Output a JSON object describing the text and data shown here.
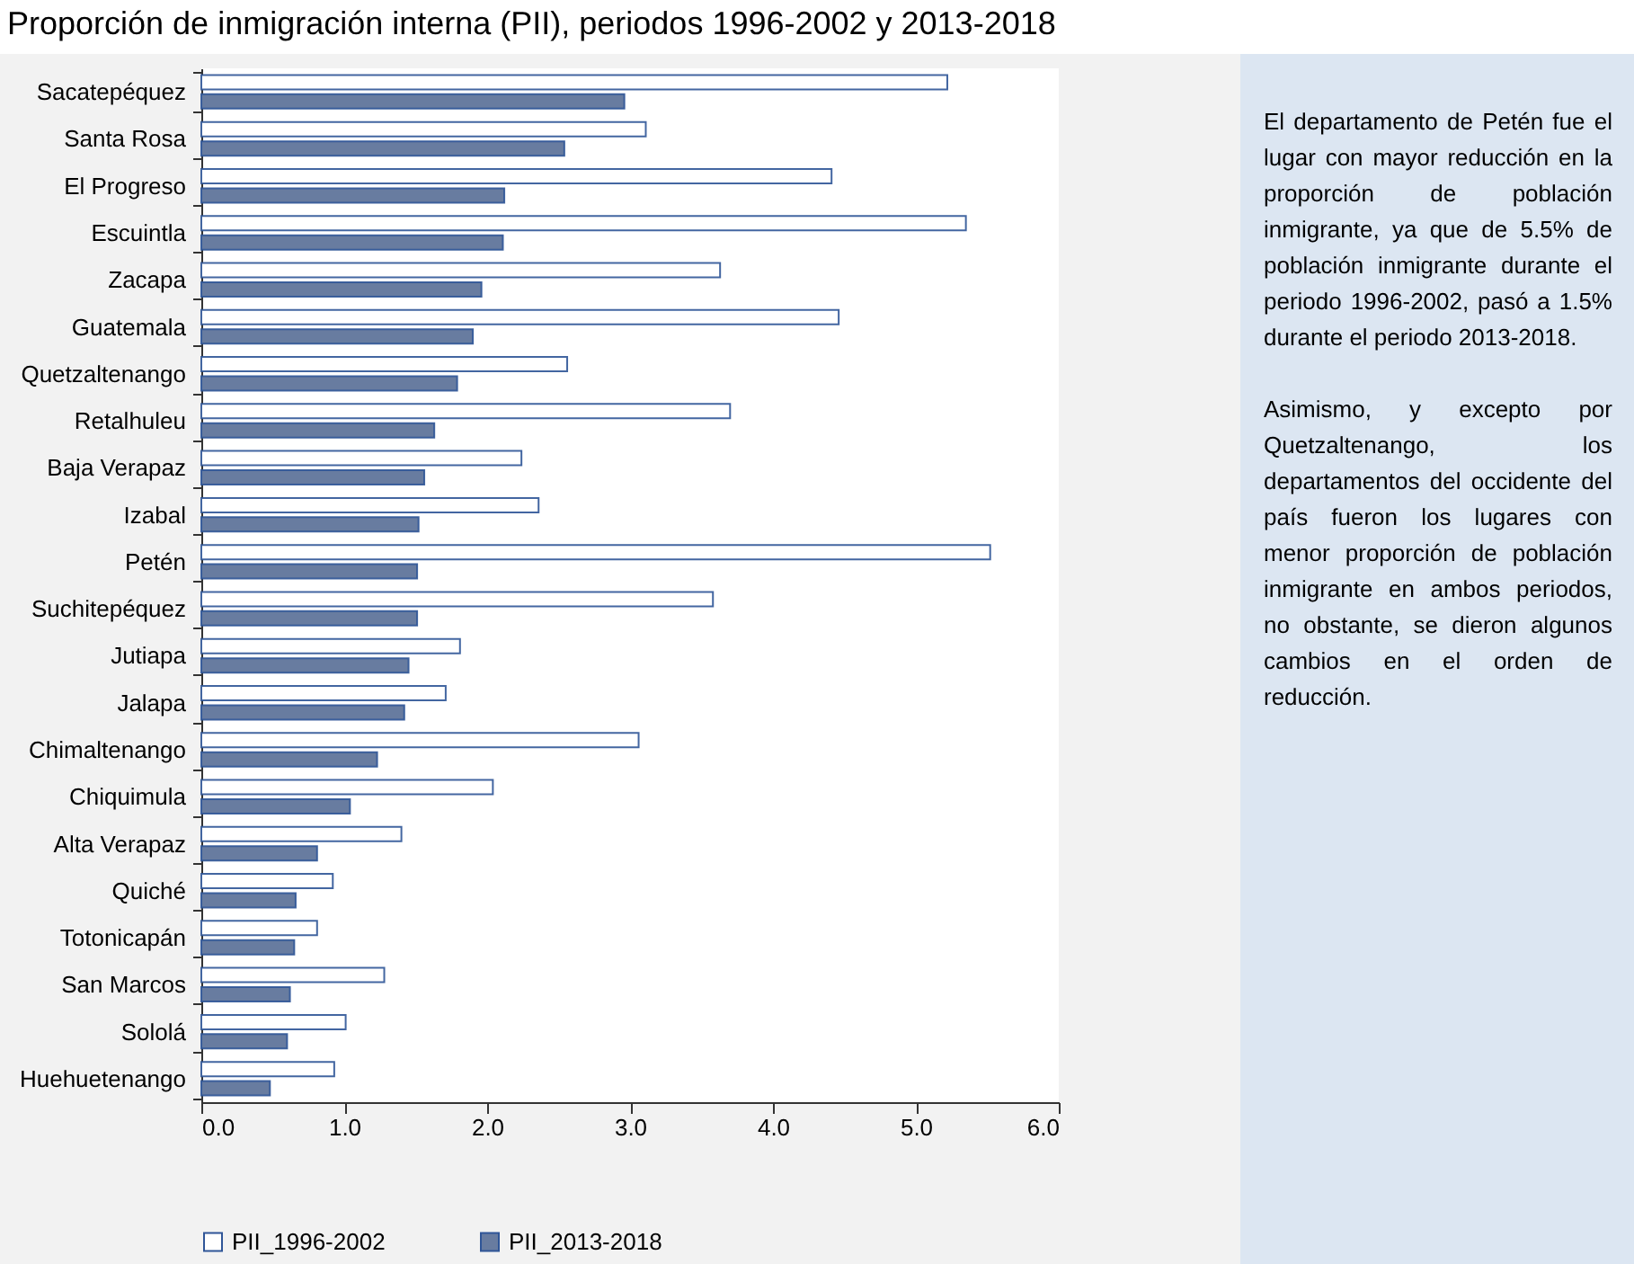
{
  "chart_data": {
    "type": "bar",
    "orientation": "horizontal",
    "title": "Proporción de inmigración interna (PII), periodos 1996-2002 y 2013-2018",
    "categories": [
      "Sacatepéquez",
      "Santa Rosa",
      "El Progreso",
      "Escuintla",
      "Zacapa",
      "Guatemala",
      "Quetzaltenango",
      "Retalhuleu",
      "Baja Verapaz",
      "Izabal",
      "Petén",
      "Suchitepéquez",
      "Jutiapa",
      "Jalapa",
      "Chimaltenango",
      "Chiquimula",
      "Alta Verapaz",
      "Quiché",
      "Totonicapán",
      "San Marcos",
      "Sololá",
      "Huehuetenango"
    ],
    "series": [
      {
        "name": "PII_1996-2002",
        "color": "#ffffff",
        "values": [
          5.22,
          3.11,
          4.41,
          5.35,
          3.63,
          4.46,
          2.56,
          3.7,
          2.24,
          2.36,
          5.52,
          3.58,
          1.81,
          1.71,
          3.06,
          2.04,
          1.4,
          0.92,
          0.81,
          1.28,
          1.01,
          0.93
        ]
      },
      {
        "name": "PII_2013-2018",
        "color": "#687ca0",
        "values": [
          2.96,
          2.54,
          2.12,
          2.11,
          1.96,
          1.9,
          1.79,
          1.63,
          1.56,
          1.52,
          1.51,
          1.51,
          1.45,
          1.42,
          1.23,
          1.04,
          0.81,
          0.66,
          0.65,
          0.62,
          0.6,
          0.48
        ]
      }
    ],
    "xlim": [
      0,
      6
    ],
    "xticks": [
      {
        "value": 0,
        "label": "0.0"
      },
      {
        "value": 1,
        "label": "1.0"
      },
      {
        "value": 2,
        "label": "2.0"
      },
      {
        "value": 3,
        "label": "3.0"
      },
      {
        "value": 4,
        "label": "4.0"
      },
      {
        "value": 5,
        "label": "5.0"
      },
      {
        "value": 6,
        "label": "6.0"
      }
    ],
    "grid": false,
    "legend": "bottom",
    "annotations": [
      "El departamento de Petén fue el lugar con mayor reducción en la proporción de población inmigrante, ya que de 5.5% de población inmigrante durante el periodo 1996-2002, pasó a 1.5% durante el periodo 2013-2018.",
      "Asimismo, y excepto por Quetzaltenango, los departamentos del occidente del país fueron los lugares con menor proporción de población inmigrante en ambos periodos, no obstante, se dieron algunos cambios en el orden de reducción."
    ]
  }
}
